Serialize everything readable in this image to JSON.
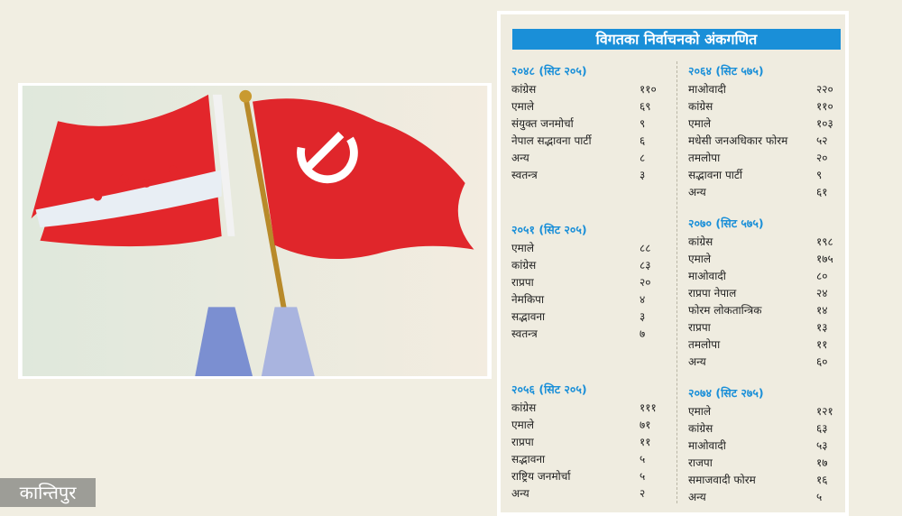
{
  "logo": "कान्तिपुर",
  "panel": {
    "title": "विगतका निर्वाचनको अंकगणित",
    "sections": [
      {
        "heading": "२०४८ (सिट २०५)",
        "rows": [
          [
            "कांग्रेस",
            "११०"
          ],
          [
            "एमाले",
            "६९"
          ],
          [
            "संयुक्त जनमोर्चा",
            "९"
          ],
          [
            "नेपाल सद्भावना पार्टी",
            "६"
          ],
          [
            "अन्य",
            "८"
          ],
          [
            "स्वतन्त्र",
            "३"
          ]
        ]
      },
      {
        "heading": "२०५१ (सिट २०५)",
        "rows": [
          [
            "एमाले",
            "८८"
          ],
          [
            "कांग्रेस",
            "८३"
          ],
          [
            "राप्रपा",
            "२०"
          ],
          [
            "नेमकिपा",
            "४"
          ],
          [
            "सद्भावना",
            "३"
          ],
          [
            "स्वतन्त्र",
            "७"
          ]
        ]
      },
      {
        "heading": "२०५६ (सिट २०५)",
        "rows": [
          [
            "कांग्रेस",
            "१११"
          ],
          [
            "एमाले",
            "७१"
          ],
          [
            "राप्रपा",
            "११"
          ],
          [
            "सद्भावना",
            "५"
          ],
          [
            "राष्ट्रिय जनमोर्चा",
            "५"
          ],
          [
            "अन्य",
            "२"
          ]
        ]
      },
      {
        "heading": "२०६४ (सिट ५७५)",
        "rows": [
          [
            "माओवादी",
            "२२०"
          ],
          [
            "कांग्रेस",
            "११०"
          ],
          [
            "एमाले",
            "१०३"
          ],
          [
            "मधेसी जनअधिकार फोरम",
            "५२"
          ],
          [
            "तमलोपा",
            "२०"
          ],
          [
            "सद्भावना पार्टी",
            "९"
          ],
          [
            "अन्य",
            "६१"
          ]
        ]
      },
      {
        "heading": "२०७० (सिट ५७५)",
        "rows": [
          [
            "कांग्रेस",
            "१९८"
          ],
          [
            "एमाले",
            "१७५"
          ],
          [
            "माओवादी",
            "८०"
          ],
          [
            "राप्रपा नेपाल",
            "२४"
          ],
          [
            "फोरम लोकतान्त्रिक",
            "१४"
          ],
          [
            "राप्रपा",
            "१३"
          ],
          [
            "तमलोपा",
            "११"
          ],
          [
            "अन्य",
            "६०"
          ]
        ]
      },
      {
        "heading": "२०७४ (सिट २७५)",
        "rows": [
          [
            "एमाले",
            "१२१"
          ],
          [
            "कांग्रेस",
            "६३"
          ],
          [
            "माओवादी",
            "५३"
          ],
          [
            "राजपा",
            "१७"
          ],
          [
            "समाजवादी फोरम",
            "१६"
          ],
          [
            "अन्य",
            "५"
          ]
        ]
      }
    ]
  },
  "colors": {
    "accent": "#1a8fd8",
    "flag_red": "#e0262b"
  }
}
